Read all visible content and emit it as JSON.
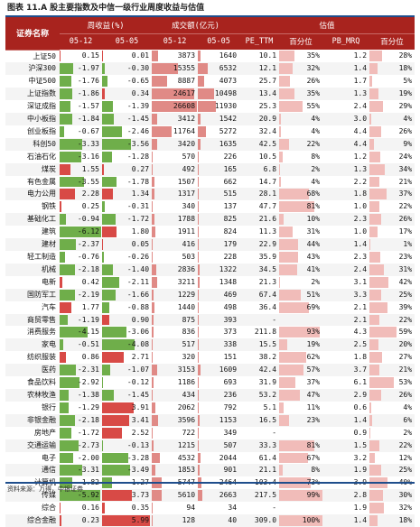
{
  "caption": {
    "label": "图表 11.A 股主要指数及中信一级行业周度收益与估值"
  },
  "table": {
    "corner_label": "证券名称",
    "groups": [
      "周收益(%)",
      "成交额(亿元)",
      "估值"
    ],
    "subheaders": [
      "05-12",
      "05-05",
      "05-12",
      "05-05",
      "PE_TTM",
      "百分位",
      "PB_MRQ",
      "百分位"
    ],
    "rows": [
      {
        "name": "上证50",
        "r1": "0.15",
        "r2": "0.01",
        "t1": "3873",
        "t2": "1640",
        "pe": "10.1",
        "pep": "35%",
        "pb": "1.2",
        "pbp": "28%"
      },
      {
        "name": "沪深300",
        "r1": "-1.97",
        "r2": "-0.30",
        "t1": "15355",
        "t2": "6532",
        "pe": "12.1",
        "pep": "32%",
        "pb": "1.4",
        "pbp": "18%"
      },
      {
        "name": "中证500",
        "r1": "-1.76",
        "r2": "-0.65",
        "t1": "8887",
        "t2": "4073",
        "pe": "25.7",
        "pep": "26%",
        "pb": "1.7",
        "pbp": "5%"
      },
      {
        "name": "上证指数",
        "r1": "-1.86",
        "r2": "0.34",
        "t1": "24617",
        "t2": "10498",
        "pe": "13.4",
        "pep": "35%",
        "pb": "1.3",
        "pbp": "19%"
      },
      {
        "name": "深证成指",
        "r1": "-1.57",
        "r2": "-1.39",
        "t1": "26608",
        "t2": "11930",
        "pe": "25.3",
        "pep": "55%",
        "pb": "2.4",
        "pbp": "29%"
      },
      {
        "name": "中小板指",
        "r1": "-1.84",
        "r2": "-1.45",
        "t1": "3412",
        "t2": "1542",
        "pe": "20.9",
        "pep": "4%",
        "pb": "3.0",
        "pbp": "4%"
      },
      {
        "name": "创业板指",
        "r1": "-0.67",
        "r2": "-2.46",
        "t1": "11764",
        "t2": "5272",
        "pe": "32.4",
        "pep": "4%",
        "pb": "4.4",
        "pbp": "26%"
      },
      {
        "name": "科创50",
        "r1": "-3.33",
        "r2": "-3.56",
        "t1": "3420",
        "t2": "1635",
        "pe": "42.5",
        "pep": "22%",
        "pb": "4.4",
        "pbp": "9%"
      },
      {
        "name": "石油石化",
        "r1": "-3.16",
        "r2": "-1.28",
        "t1": "570",
        "t2": "226",
        "pe": "10.5",
        "pep": "8%",
        "pb": "1.2",
        "pbp": "24%"
      },
      {
        "name": "煤炭",
        "r1": "1.55",
        "r2": "0.27",
        "t1": "492",
        "t2": "165",
        "pe": "6.8",
        "pep": "2%",
        "pb": "1.3",
        "pbp": "34%"
      },
      {
        "name": "有色金属",
        "r1": "-3.55",
        "r2": "-1.78",
        "t1": "1507",
        "t2": "662",
        "pe": "14.7",
        "pep": "4%",
        "pb": "2.2",
        "pbp": "21%"
      },
      {
        "name": "电力公用",
        "r1": "2.28",
        "r2": "1.34",
        "t1": "1317",
        "t2": "515",
        "pe": "28.1",
        "pep": "68%",
        "pb": "1.8",
        "pbp": "37%"
      },
      {
        "name": "钢铁",
        "r1": "0.25",
        "r2": "-0.31",
        "t1": "340",
        "t2": "137",
        "pe": "47.7",
        "pep": "81%",
        "pb": "1.0",
        "pbp": "22%"
      },
      {
        "name": "基础化工",
        "r1": "-0.94",
        "r2": "-1.72",
        "t1": "1788",
        "t2": "825",
        "pe": "21.6",
        "pep": "10%",
        "pb": "2.3",
        "pbp": "26%"
      },
      {
        "name": "建筑",
        "r1": "-6.12",
        "r2": "1.80",
        "t1": "1911",
        "t2": "824",
        "pe": "11.3",
        "pep": "31%",
        "pb": "1.0",
        "pbp": "17%"
      },
      {
        "name": "建材",
        "r1": "-2.37",
        "r2": "0.05",
        "t1": "416",
        "t2": "179",
        "pe": "22.9",
        "pep": "44%",
        "pb": "1.4",
        "pbp": "1%"
      },
      {
        "name": "轻工制造",
        "r1": "-0.76",
        "r2": "-0.26",
        "t1": "503",
        "t2": "228",
        "pe": "35.9",
        "pep": "43%",
        "pb": "2.3",
        "pbp": "23%"
      },
      {
        "name": "机械",
        "r1": "-2.18",
        "r2": "-1.40",
        "t1": "2836",
        "t2": "1322",
        "pe": "34.5",
        "pep": "41%",
        "pb": "2.4",
        "pbp": "31%"
      },
      {
        "name": "电新",
        "r1": "0.42",
        "r2": "-2.11",
        "t1": "3211",
        "t2": "1348",
        "pe": "21.3",
        "pep": "2%",
        "pb": "3.1",
        "pbp": "42%"
      },
      {
        "name": "国防军工",
        "r1": "-2.19",
        "r2": "-1.66",
        "t1": "1229",
        "t2": "469",
        "pe": "67.4",
        "pep": "51%",
        "pb": "3.3",
        "pbp": "25%"
      },
      {
        "name": "汽车",
        "r1": "1.77",
        "r2": "-0.88",
        "t1": "1440",
        "t2": "498",
        "pe": "36.4",
        "pep": "69%",
        "pb": "2.1",
        "pbp": "39%"
      },
      {
        "name": "商贸零售",
        "r1": "-1.19",
        "r2": "0.90",
        "t1": "875",
        "t2": "393",
        "pe": "-",
        "pep": "",
        "pb": "2.1",
        "pbp": "22%"
      },
      {
        "name": "消费服务",
        "r1": "-4.15",
        "r2": "-3.06",
        "t1": "836",
        "t2": "373",
        "pe": "211.8",
        "pep": "93%",
        "pb": "4.3",
        "pbp": "59%"
      },
      {
        "name": "家电",
        "r1": "-0.51",
        "r2": "-4.08",
        "t1": "517",
        "t2": "338",
        "pe": "15.5",
        "pep": "19%",
        "pb": "2.5",
        "pbp": "20%"
      },
      {
        "name": "纺织服装",
        "r1": "0.86",
        "r2": "2.71",
        "t1": "320",
        "t2": "151",
        "pe": "38.2",
        "pep": "62%",
        "pb": "1.8",
        "pbp": "27%"
      },
      {
        "name": "医药",
        "r1": "-2.31",
        "r2": "-1.07",
        "t1": "3153",
        "t2": "1609",
        "pe": "42.4",
        "pep": "57%",
        "pb": "3.7",
        "pbp": "21%"
      },
      {
        "name": "食品饮料",
        "r1": "-2.92",
        "r2": "-0.12",
        "t1": "1186",
        "t2": "693",
        "pe": "31.9",
        "pep": "37%",
        "pb": "6.1",
        "pbp": "53%"
      },
      {
        "name": "农林牧渔",
        "r1": "-1.38",
        "r2": "-1.45",
        "t1": "434",
        "t2": "236",
        "pe": "53.2",
        "pep": "47%",
        "pb": "2.9",
        "pbp": "26%"
      },
      {
        "name": "银行",
        "r1": "-1.29",
        "r2": "3.91",
        "t1": "2062",
        "t2": "792",
        "pe": "5.1",
        "pep": "11%",
        "pb": "0.6",
        "pbp": "4%"
      },
      {
        "name": "非银金融",
        "r1": "-2.18",
        "r2": "3.41",
        "t1": "3596",
        "t2": "1153",
        "pe": "16.5",
        "pep": "23%",
        "pb": "1.4",
        "pbp": "6%"
      },
      {
        "name": "房地产",
        "r1": "-1.72",
        "r2": "2.52",
        "t1": "722",
        "t2": "349",
        "pe": "-",
        "pep": "",
        "pb": "0.9",
        "pbp": "2%"
      },
      {
        "name": "交通运输",
        "r1": "-2.73",
        "r2": "-0.13",
        "t1": "1215",
        "t2": "507",
        "pe": "33.3",
        "pep": "81%",
        "pb": "1.5",
        "pbp": "22%"
      },
      {
        "name": "电子",
        "r1": "-2.00",
        "r2": "-3.28",
        "t1": "4532",
        "t2": "2044",
        "pe": "61.4",
        "pep": "67%",
        "pb": "3.2",
        "pbp": "12%"
      },
      {
        "name": "通信",
        "r1": "-3.31",
        "r2": "-3.49",
        "t1": "1853",
        "t2": "901",
        "pe": "21.1",
        "pep": "8%",
        "pb": "1.9",
        "pbp": "25%"
      },
      {
        "name": "计算机",
        "r1": "-1.82",
        "r2": "-1.27",
        "t1": "5747",
        "t2": "2464",
        "pe": "103.4",
        "pep": "73%",
        "pb": "3.9",
        "pbp": "40%"
      },
      {
        "name": "传媒",
        "r1": "-5.92",
        "r2": "3.73",
        "t1": "5610",
        "t2": "2663",
        "pe": "217.5",
        "pep": "99%",
        "pb": "2.8",
        "pbp": "30%"
      },
      {
        "name": "综合",
        "r1": "0.16",
        "r2": "0.35",
        "t1": "94",
        "t2": "34",
        "pe": "-",
        "pep": "",
        "pb": "1.9",
        "pbp": "32%"
      },
      {
        "name": "综合金融",
        "r1": "0.23",
        "r2": "5.99",
        "t1": "128",
        "t2": "40",
        "pe": "309.0",
        "pep": "100%",
        "pb": "1.4",
        "pbp": "18%"
      }
    ]
  },
  "footer": {
    "source": "资料来源：万得，中银证券"
  },
  "colors": {
    "header_bg": "#a8231e",
    "rule_blue": "#1f4e8c",
    "positive": "#d84a46",
    "negative": "#6fae4a",
    "turnover": "#e08a86",
    "percentile": "#f1bcb9"
  }
}
